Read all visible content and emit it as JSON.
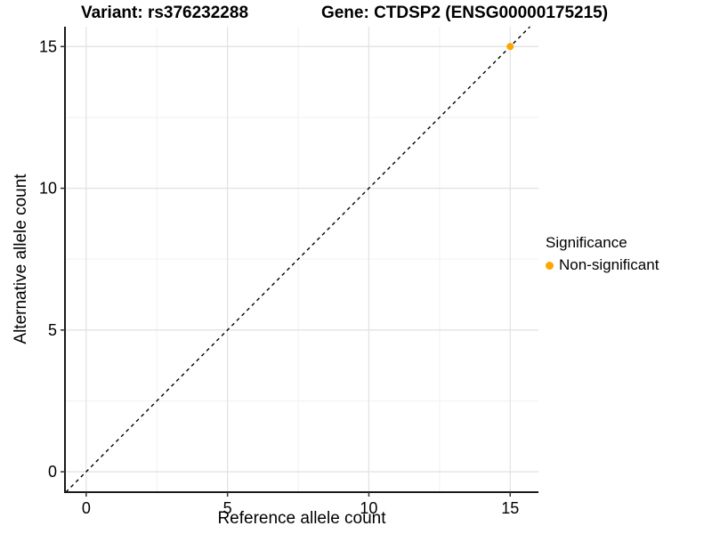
{
  "chart_data": {
    "type": "scatter",
    "titles": {
      "left": "Variant: rs376232288",
      "right": "Gene: CTDSP2 (ENSG00000175215)"
    },
    "xlabel": "Reference allele count",
    "ylabel": "Alternative allele count",
    "xticks": [
      0,
      5,
      10,
      15
    ],
    "yticks": [
      0,
      5,
      10,
      15
    ],
    "minor_xticks": [
      2.5,
      7.5,
      12.5
    ],
    "minor_yticks": [
      2.5,
      7.5,
      12.5
    ],
    "xlim": [
      -0.75,
      16.0
    ],
    "ylim": [
      -0.72,
      15.7
    ],
    "grid": true,
    "points": [
      {
        "x": 15,
        "y": 15,
        "series": "Non-significant"
      }
    ],
    "reference_line": {
      "type": "identity y=x",
      "style": "dashed",
      "color": "#000000"
    },
    "legend": {
      "title": "Significance",
      "position": "right",
      "items": [
        {
          "label": "Non-significant",
          "color": "#FFA500"
        }
      ]
    }
  },
  "colors": {
    "background": "#FFFFFF",
    "grid_major": "#E3E3E3",
    "grid_minor": "#F1F1F1",
    "axis_line": "#1A1A1A",
    "tick_mark": "#333333",
    "text": "#000000",
    "point": "#FFA500"
  }
}
